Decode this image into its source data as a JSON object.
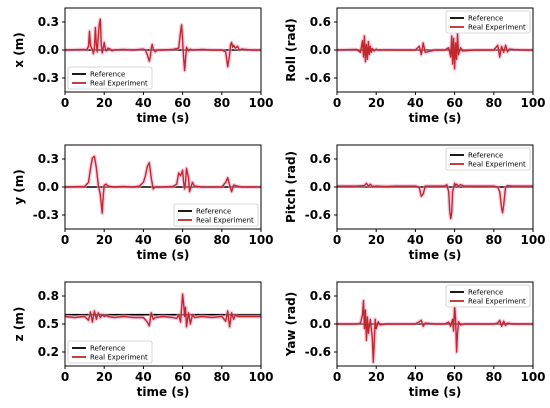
{
  "chart_data": [
    {
      "type": "line",
      "subplot": "x",
      "ylabel": "x (m)",
      "xlabel": "time (s)",
      "xlim": [
        0,
        100
      ],
      "ylim": [
        -0.45,
        0.45
      ],
      "xticks": [
        "0",
        "20",
        "40",
        "60",
        "80",
        "100"
      ],
      "yticks": [
        {
          "v": 0.3,
          "t": "0.3"
        },
        {
          "v": 0.0,
          "t": "0.0"
        },
        {
          "v": -0.3,
          "t": "-0.3"
        }
      ],
      "legend": {
        "position": "lower-left"
      },
      "series": [
        {
          "name": "Reference",
          "color": "#000000",
          "x": [
            0,
            100
          ],
          "y": [
            0,
            0
          ]
        },
        {
          "name": "Real Experiment",
          "color": "#c0282a",
          "x": [
            0,
            10,
            11,
            12,
            12.5,
            13,
            13.5,
            14,
            14.5,
            15,
            15.5,
            16,
            16.5,
            17,
            17.5,
            18,
            18.5,
            19,
            19.5,
            20,
            20.5,
            21,
            22,
            23,
            24,
            25,
            30,
            35,
            40,
            41,
            42,
            43,
            43.5,
            44,
            44.5,
            45,
            46,
            47,
            50,
            55,
            58,
            59,
            59.5,
            60,
            60.5,
            61,
            61.5,
            62,
            63,
            64,
            65,
            70,
            75,
            80,
            82,
            83,
            84,
            84.5,
            85,
            85.5,
            86,
            87,
            88,
            89,
            90,
            95,
            100
          ],
          "y": [
            0,
            0.005,
            0,
            0.04,
            0.2,
            0.05,
            0.02,
            0.01,
            -0.04,
            0.02,
            0.24,
            0.05,
            -0.02,
            0.15,
            0.28,
            0.33,
            0.05,
            -0.03,
            0.02,
            0.08,
            0.02,
            -0.01,
            0.02,
            0.01,
            -0.01,
            0,
            0.005,
            0,
            0.01,
            0,
            -0.05,
            -0.12,
            -0.07,
            0.02,
            0.06,
            0.01,
            -0.02,
            0,
            0,
            0.005,
            0.02,
            0.2,
            0.27,
            0.1,
            -0.08,
            -0.22,
            -0.1,
            0.03,
            -0.01,
            0.01,
            0,
            0.005,
            0,
            0,
            -0.02,
            -0.18,
            -0.05,
            0.06,
            0.08,
            0.03,
            0.05,
            0.02,
            0.04,
            0,
            0.01,
            0,
            0
          ]
        }
      ]
    },
    {
      "type": "line",
      "subplot": "roll",
      "ylabel": "Roll (rad)",
      "xlabel": "time (s)",
      "xlim": [
        0,
        100
      ],
      "ylim": [
        -0.9,
        0.9
      ],
      "xticks": [
        "0",
        "20",
        "40",
        "60",
        "80",
        "100"
      ],
      "yticks": [
        {
          "v": 0.6,
          "t": "0.6"
        },
        {
          "v": 0.0,
          "t": "0.0"
        },
        {
          "v": -0.6,
          "t": "-0.6"
        }
      ],
      "legend": {
        "position": "top-right"
      },
      "series": [
        {
          "name": "Reference",
          "color": "#000000",
          "x": [
            0,
            100
          ],
          "y": [
            0,
            0
          ]
        },
        {
          "name": "Real Experiment",
          "color": "#c0282a",
          "x": [
            0,
            10,
            12,
            13,
            13.5,
            14,
            14.5,
            15,
            15.5,
            16,
            16.5,
            17,
            17.5,
            18,
            19,
            20,
            21,
            25,
            30,
            40,
            42,
            43,
            44,
            45,
            50,
            55,
            57,
            58,
            58.5,
            59,
            59.5,
            60,
            60.5,
            61,
            61.5,
            62,
            63,
            64,
            70,
            75,
            80,
            82,
            83,
            84,
            85,
            86,
            87,
            88,
            90,
            95,
            100
          ],
          "y": [
            0,
            0.01,
            -0.05,
            0.2,
            -0.15,
            0.3,
            -0.25,
            0.12,
            -0.2,
            0.18,
            -0.1,
            0.08,
            -0.05,
            0.03,
            -0.02,
            0.02,
            0,
            0.005,
            0,
            0,
            0.08,
            -0.1,
            0.15,
            -0.05,
            0,
            0,
            0.05,
            -0.15,
            0.3,
            -0.3,
            0.25,
            -0.4,
            0.15,
            -0.2,
            0.35,
            -0.1,
            0.05,
            -0.02,
            0,
            0,
            0,
            0.1,
            -0.15,
            0.08,
            -0.05,
            0.1,
            -0.04,
            0.02,
            0.01,
            0,
            0
          ]
        }
      ]
    },
    {
      "type": "line",
      "subplot": "y",
      "ylabel": "y (m)",
      "xlabel": "time (s)",
      "xlim": [
        0,
        100
      ],
      "ylim": [
        -0.45,
        0.45
      ],
      "xticks": [
        "0",
        "20",
        "40",
        "60",
        "80",
        "100"
      ],
      "yticks": [
        {
          "v": 0.3,
          "t": "0.3"
        },
        {
          "v": 0.0,
          "t": "0.0"
        },
        {
          "v": -0.3,
          "t": "-0.3"
        }
      ],
      "legend": {
        "position": "lower-right"
      },
      "series": [
        {
          "name": "Reference",
          "color": "#000000",
          "x": [
            0,
            100
          ],
          "y": [
            0,
            0
          ]
        },
        {
          "name": "Real Experiment",
          "color": "#c0282a",
          "x": [
            0,
            10,
            12,
            13,
            14,
            15,
            16,
            17,
            18,
            19,
            19.5,
            20,
            21,
            22,
            25,
            30,
            35,
            38,
            40,
            41,
            42,
            43,
            44,
            45,
            46,
            50,
            55,
            57,
            58,
            59,
            60,
            60.5,
            61,
            61.5,
            62,
            63,
            63.5,
            64,
            65,
            66,
            70,
            75,
            80,
            82,
            83,
            84,
            85,
            86,
            88,
            90,
            95,
            100
          ],
          "y": [
            0,
            0.005,
            0.05,
            0.2,
            0.31,
            0.33,
            0.2,
            0.02,
            -0.08,
            -0.28,
            -0.1,
            0.02,
            0.03,
            0.01,
            0,
            0.005,
            0,
            0.01,
            0.05,
            0.12,
            0.22,
            0.26,
            0.1,
            -0.02,
            0,
            0,
            0.005,
            0.03,
            0.15,
            0.12,
            0.18,
            0.05,
            -0.02,
            0.05,
            0.2,
            0.1,
            -0.05,
            -0.02,
            0.05,
            0.01,
            0,
            0,
            0,
            0.05,
            0.1,
            0.02,
            -0.05,
            0.02,
            0.01,
            0,
            0,
            0
          ]
        }
      ]
    },
    {
      "type": "line",
      "subplot": "pitch",
      "ylabel": "Pitch (rad)",
      "xlabel": "time (s)",
      "xlim": [
        0,
        100
      ],
      "ylim": [
        -0.9,
        0.9
      ],
      "xticks": [
        "0",
        "20",
        "40",
        "60",
        "80",
        "100"
      ],
      "yticks": [
        {
          "v": 0.6,
          "t": "0.6"
        },
        {
          "v": 0.0,
          "t": "0.0"
        },
        {
          "v": -0.6,
          "t": "-0.6"
        }
      ],
      "legend": {
        "position": "top-right"
      },
      "series": [
        {
          "name": "Reference",
          "color": "#000000",
          "x": [
            0,
            100
          ],
          "y": [
            0,
            0
          ]
        },
        {
          "name": "Real Experiment",
          "color": "#c0282a",
          "x": [
            0,
            10,
            14,
            15,
            16,
            17,
            18,
            20,
            25,
            30,
            40,
            41,
            42,
            43,
            44,
            45,
            50,
            55,
            56,
            57,
            57.5,
            58,
            58.5,
            59,
            60,
            60.5,
            61,
            62,
            63,
            65,
            70,
            80,
            82,
            83,
            84,
            84.5,
            85,
            86,
            87,
            90,
            100
          ],
          "y": [
            0.02,
            0.02,
            0.03,
            0.08,
            0.02,
            0.06,
            0.01,
            0.02,
            0.01,
            0.02,
            0.02,
            0.01,
            -0.02,
            -0.2,
            -0.15,
            0.02,
            0.02,
            0.02,
            0.05,
            -0.1,
            -0.5,
            -0.68,
            -0.55,
            -0.1,
            0.08,
            0.03,
            0.06,
            0.02,
            0.05,
            0.02,
            0.02,
            0.02,
            0,
            -0.1,
            -0.45,
            -0.55,
            -0.4,
            0,
            0.03,
            0.02,
            0.02
          ]
        }
      ]
    },
    {
      "type": "line",
      "subplot": "z",
      "ylabel": "z (m)",
      "xlabel": "time (s)",
      "xlim": [
        0,
        100
      ],
      "ylim": [
        0.05,
        0.95
      ],
      "xticks": [
        "0",
        "20",
        "40",
        "60",
        "80",
        "100"
      ],
      "yticks": [
        {
          "v": 0.8,
          "t": "0.8"
        },
        {
          "v": 0.5,
          "t": "0.5"
        },
        {
          "v": 0.2,
          "t": "0.2"
        }
      ],
      "legend": {
        "position": "lower-left"
      },
      "series": [
        {
          "name": "Reference",
          "color": "#000000",
          "x": [
            0,
            100
          ],
          "y": [
            0.6,
            0.6
          ]
        },
        {
          "name": "Real Experiment",
          "color": "#c0282a",
          "x": [
            0,
            5,
            10,
            12,
            13,
            14,
            15,
            16,
            17,
            18,
            19,
            20,
            21,
            22,
            25,
            30,
            35,
            40,
            42,
            43,
            44,
            45,
            46,
            50,
            55,
            57,
            58,
            59,
            60,
            60.5,
            61,
            61.5,
            62,
            63,
            64,
            65,
            66,
            70,
            75,
            80,
            82,
            83,
            84,
            85,
            86,
            87,
            88,
            90,
            95,
            100
          ],
          "y": [
            0.58,
            0.57,
            0.58,
            0.54,
            0.63,
            0.52,
            0.64,
            0.55,
            0.62,
            0.57,
            0.6,
            0.58,
            0.59,
            0.58,
            0.57,
            0.58,
            0.57,
            0.57,
            0.52,
            0.48,
            0.62,
            0.55,
            0.57,
            0.58,
            0.57,
            0.56,
            0.6,
            0.52,
            0.82,
            0.72,
            0.58,
            0.68,
            0.47,
            0.62,
            0.5,
            0.6,
            0.57,
            0.58,
            0.57,
            0.58,
            0.53,
            0.64,
            0.47,
            0.62,
            0.55,
            0.6,
            0.58,
            0.58,
            0.58,
            0.58
          ]
        }
      ]
    },
    {
      "type": "line",
      "subplot": "yaw",
      "ylabel": "Yaw (rad)",
      "xlabel": "time (s)",
      "xlim": [
        0,
        100
      ],
      "ylim": [
        -0.9,
        0.9
      ],
      "xticks": [
        "0",
        "20",
        "40",
        "60",
        "80",
        "100"
      ],
      "yticks": [
        {
          "v": 0.6,
          "t": "0.6"
        },
        {
          "v": 0.0,
          "t": "0.0"
        },
        {
          "v": -0.6,
          "t": "-0.6"
        }
      ],
      "legend": {
        "position": "top-right"
      },
      "series": [
        {
          "name": "Reference",
          "color": "#000000",
          "x": [
            0,
            100
          ],
          "y": [
            0,
            0
          ]
        },
        {
          "name": "Real Experiment",
          "color": "#c0282a",
          "x": [
            0,
            10,
            12,
            13,
            13.5,
            14,
            14.5,
            15,
            15.5,
            16,
            17,
            18,
            18.5,
            19,
            19.5,
            20,
            21,
            22,
            25,
            30,
            40,
            42,
            43,
            44,
            45,
            50,
            55,
            57,
            58,
            59,
            59.5,
            60,
            60.5,
            61,
            61.5,
            62,
            63,
            65,
            70,
            80,
            82,
            83,
            84,
            85,
            86,
            87,
            90,
            95,
            100
          ],
          "y": [
            0,
            0,
            0.02,
            0.2,
            0.5,
            -0.1,
            0.3,
            -0.35,
            0.15,
            -0.2,
            0.1,
            -0.3,
            -0.82,
            -0.4,
            0.1,
            -0.1,
            0.05,
            -0.02,
            0,
            0,
            0,
            0.05,
            0.08,
            -0.05,
            0.02,
            0,
            0,
            0.04,
            -0.05,
            0.1,
            -0.15,
            0.4,
            0.1,
            -0.6,
            -0.2,
            0.05,
            -0.02,
            0,
            0,
            0,
            0.02,
            0.08,
            -0.05,
            0.06,
            -0.03,
            0.02,
            0,
            0,
            0
          ]
        }
      ]
    }
  ]
}
